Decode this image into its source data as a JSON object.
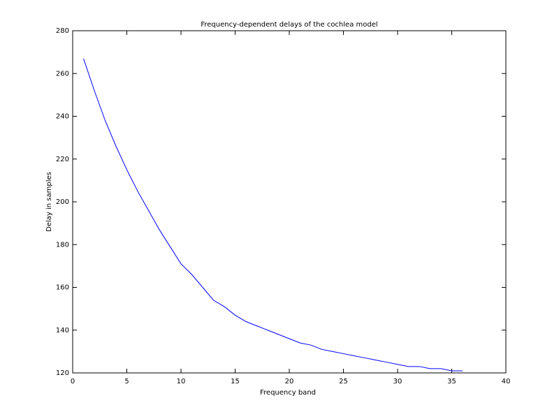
{
  "chart_data": {
    "type": "line",
    "title": "Frequency-dependent delays of the cochlea model",
    "x_label": "Frequency band",
    "y_label": "Delay in samples",
    "x": [
      1,
      2,
      3,
      4,
      5,
      6,
      7,
      8,
      9,
      10,
      11,
      12,
      13,
      14,
      15,
      16,
      17,
      18,
      19,
      20,
      21,
      22,
      23,
      24,
      25,
      26,
      27,
      28,
      29,
      30,
      31,
      32,
      33,
      34,
      35,
      36
    ],
    "series": [
      {
        "name": "delay",
        "color": "#0000ff",
        "values": [
          267,
          252,
          238,
          226,
          215,
          205,
          196,
          187,
          179,
          171,
          166,
          160,
          154,
          151,
          147,
          144,
          142,
          140,
          138,
          136,
          134,
          133,
          131,
          130,
          129,
          128,
          127,
          126,
          125,
          124,
          123,
          123,
          122,
          122,
          121,
          121
        ]
      }
    ],
    "xlim": [
      0,
      40
    ],
    "xticks": [
      0,
      5,
      10,
      15,
      20,
      25,
      30,
      35,
      40
    ],
    "ylim": [
      120,
      280
    ],
    "yticks": [
      120,
      140,
      160,
      180,
      200,
      220,
      240,
      260,
      280
    ],
    "grid": false
  }
}
